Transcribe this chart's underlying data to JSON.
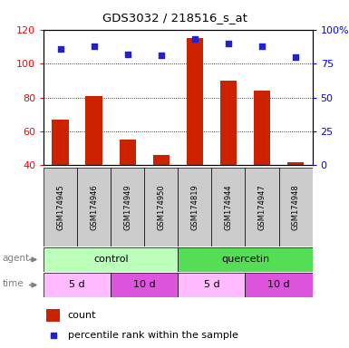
{
  "title": "GDS3032 / 218516_s_at",
  "samples": [
    "GSM174945",
    "GSM174946",
    "GSM174949",
    "GSM174950",
    "GSM174819",
    "GSM174944",
    "GSM174947",
    "GSM174948"
  ],
  "counts": [
    67,
    81,
    55,
    46,
    115,
    90,
    84,
    42
  ],
  "percentile_ranks": [
    86,
    88,
    82,
    81,
    93,
    90,
    88,
    80
  ],
  "ylim_left": [
    40,
    120
  ],
  "yticks_left": [
    40,
    60,
    80,
    100,
    120
  ],
  "ylim_right": [
    0,
    100
  ],
  "yticks_right": [
    0,
    25,
    50,
    75,
    100
  ],
  "ytick_labels_right": [
    "0",
    "25",
    "50",
    "75",
    "100%"
  ],
  "bar_color": "#cc2200",
  "dot_color": "#2222cc",
  "grid_color": "#000000",
  "agent_control_color": "#bbffbb",
  "agent_quercetin_color": "#55dd55",
  "time_5d_color": "#ffbbff",
  "time_10d_color": "#dd55dd",
  "sample_bg_color": "#cccccc",
  "bar_width": 0.5,
  "figsize": [
    3.85,
    3.84
  ],
  "dpi": 100
}
